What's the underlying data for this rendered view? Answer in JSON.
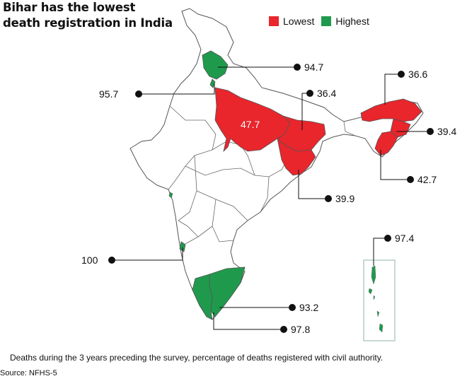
{
  "title": "Bihar has the lowest death registration in India",
  "legend": {
    "lowest": {
      "label": "Lowest",
      "color": "#e8262c"
    },
    "highest": {
      "label": "Highest",
      "color": "#1f9a4c"
    }
  },
  "colors": {
    "outline": "#555555",
    "leader": "#111111"
  },
  "values": {
    "himachal": "94.7",
    "punjab": "95.7",
    "up_inner": "47.7",
    "bihar_top": "36.4",
    "arunachal": "36.6",
    "nagaland": "39.4",
    "manipur": "42.7",
    "jharkhand": "39.9",
    "goa": "100",
    "tn": "93.2",
    "kerala": "97.8",
    "andaman": "97.4"
  },
  "footnote": "Deaths during the 3 years preceding the survey, percentage of deaths registered with civil authority.",
  "source": "Source: NFHS-5"
}
